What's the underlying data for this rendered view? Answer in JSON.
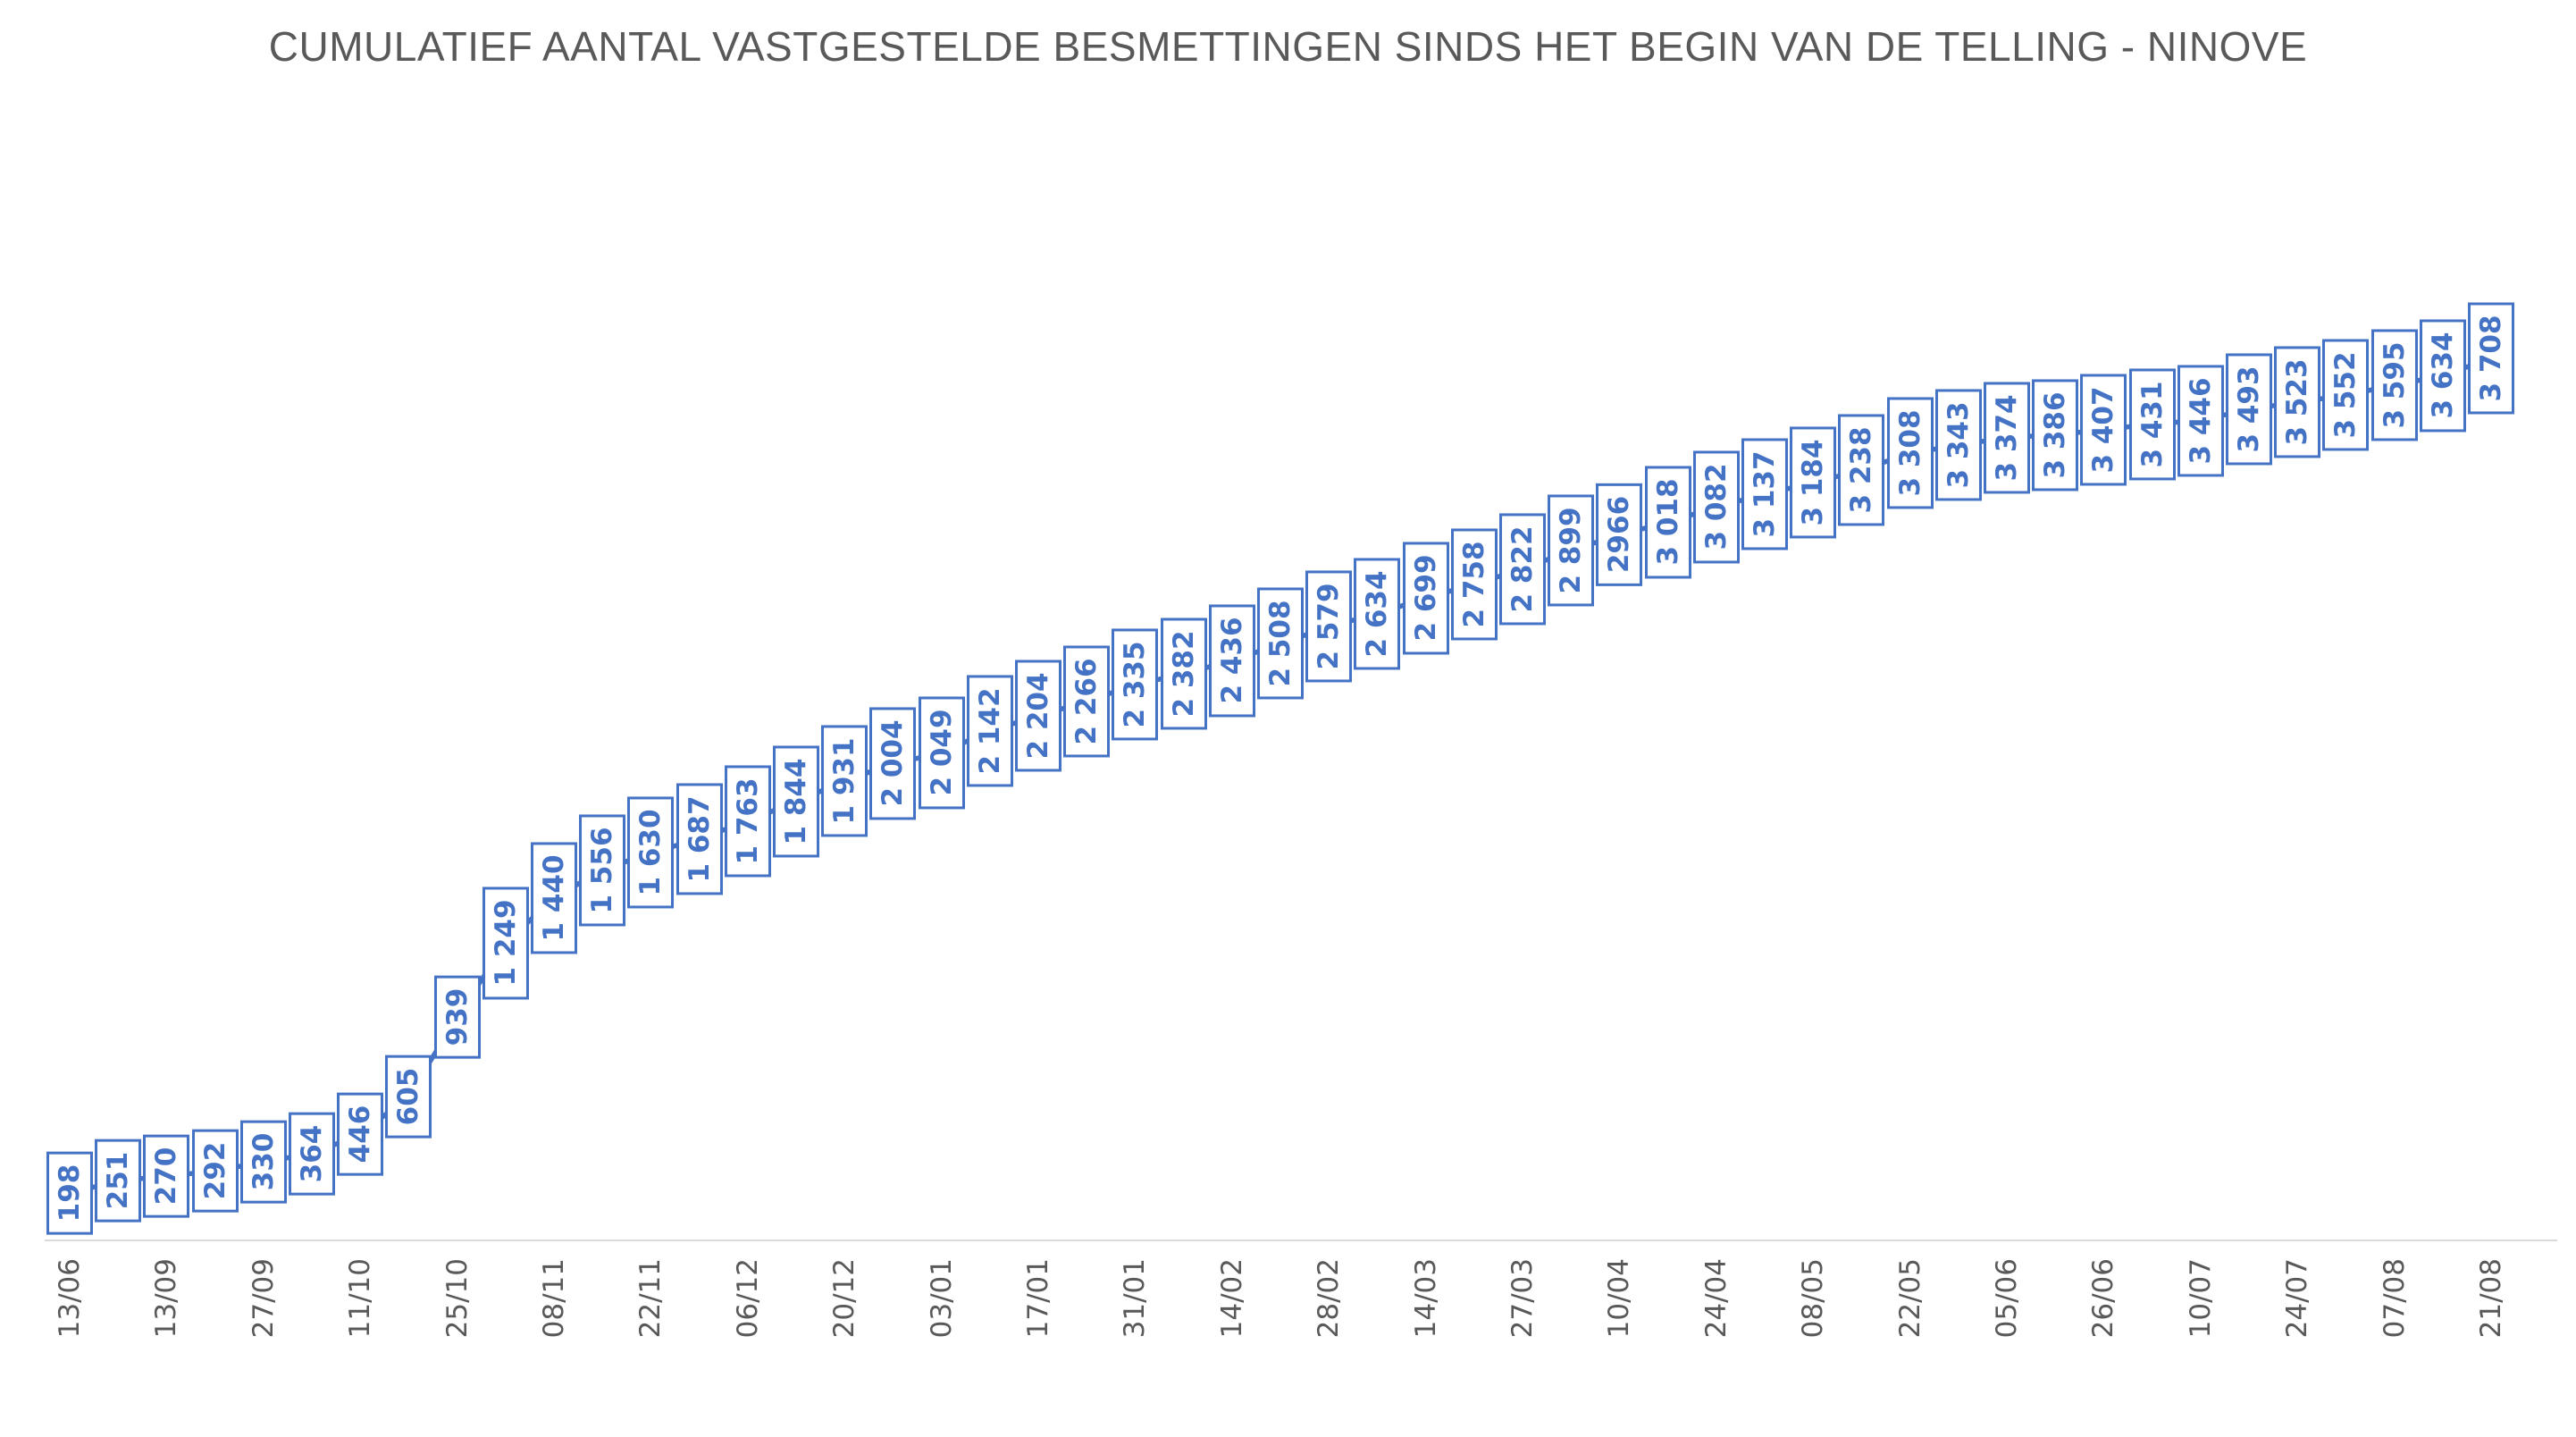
{
  "title": {
    "text": "CUMULATIEF AANTAL VASTGESTELDE BESMETTINGEN SINDS HET BEGIN VAN DE TELLING - NINOVE"
  },
  "chart_data": {
    "type": "line",
    "title": "CUMULATIEF AANTAL VASTGESTELDE BESMETTINGEN SINDS HET BEGIN VAN DE TELLING - NINOVE",
    "xlabel": "",
    "ylabel": "",
    "grid": false,
    "legend": "none",
    "y_axis_visible": false,
    "ylim": [
      0,
      4650
    ],
    "x_tick_every": 2,
    "x_tick_labels": [
      "13/06",
      "13/09",
      "27/09",
      "11/10",
      "25/10",
      "08/11",
      "22/11",
      "06/12",
      "20/12",
      "03/01",
      "17/01",
      "31/01",
      "14/02",
      "28/02",
      "14/03",
      "27/03",
      "10/04",
      "24/04",
      "08/05",
      "22/05",
      "05/06",
      "26/06",
      "10/07",
      "24/07",
      "07/08",
      "21/08"
    ],
    "series": [
      {
        "name": "cumulatief-aantal-besmettingen",
        "values": [
          198,
          251,
          270,
          292,
          330,
          364,
          446,
          605,
          939,
          1249,
          1440,
          1556,
          1630,
          1687,
          1763,
          1844,
          1931,
          2004,
          2049,
          2142,
          2204,
          2266,
          2335,
          2382,
          2436,
          2508,
          2579,
          2634,
          2699,
          2758,
          2822,
          2899,
          2966,
          3018,
          3082,
          3137,
          3184,
          3238,
          3308,
          3343,
          3374,
          3386,
          3407,
          3431,
          3446,
          3493,
          3523,
          3552,
          3595,
          3634,
          3708
        ],
        "data_labels": [
          "198",
          "251",
          "270",
          "292",
          "330",
          "364",
          "446",
          "605",
          "939",
          "1 249",
          "1 440",
          "1 556",
          "1 630",
          "1 687",
          "1 763",
          "1 844",
          "1 931",
          "2 004",
          "2 049",
          "2 142",
          "2 204",
          "2 266",
          "2 335",
          "2 382",
          "2 436",
          "2 508",
          "2 579",
          "2 634",
          "2 699",
          "2 758",
          "2 822",
          "2 899",
          "2966",
          "3 018",
          "3 082",
          "3 137",
          "3 184",
          "3 238",
          "3 308",
          "3 343",
          "3 374",
          "3 386",
          "3 407",
          "3 431",
          "3 446",
          "3 493",
          "3 523",
          "3 552",
          "3 595",
          "3 634",
          "3 708"
        ]
      }
    ],
    "colors": {
      "series_line": "#4472c4",
      "data_label_text": "#4472c4",
      "data_label_border": "#4472c4",
      "data_label_fill": "#ffffff",
      "axis_line": "#d9d9d9",
      "tick_text": "#595959",
      "title_text": "#595959",
      "background": "#ffffff"
    }
  }
}
